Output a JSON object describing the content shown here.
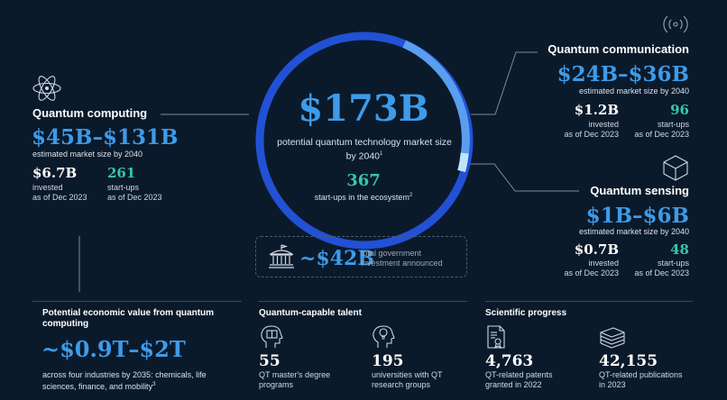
{
  "center": {
    "total": "$173B",
    "total_label": "potential quantum technology market size by 2040",
    "total_label_sup": "1",
    "startups": "367",
    "startups_label": "start-ups in the ecosystem",
    "startups_sup": "2"
  },
  "government": {
    "value": "~$42B",
    "label": "total government investment announced"
  },
  "computing": {
    "title": "Quantum computing",
    "range": "$45B–$131B",
    "range_label": "estimated market size by 2040",
    "invested": "$6.7B",
    "invested_label": "invested\nas of Dec 2023",
    "startups": "261",
    "startups_label": "start-ups\nas of Dec 2023"
  },
  "communication": {
    "title": "Quantum communication",
    "range": "$24B–$36B",
    "range_label": "estimated market size by 2040",
    "invested": "$1.2B",
    "invested_label": "invested\nas of Dec 2023",
    "startups": "96",
    "startups_label": "start-ups\nas of Dec 2023"
  },
  "sensing": {
    "title": "Quantum sensing",
    "range": "$1B–$6B",
    "range_label": "estimated market size by 2040",
    "invested": "$0.7B",
    "invested_label": "invested\nas of Dec 2023",
    "startups": "48",
    "startups_label": "start-ups\nas of Dec 2023"
  },
  "economic": {
    "title": "Potential economic value from quantum computing",
    "value": "~$0.9T–$2T",
    "label": "across four industries by 2035: chemicals, life sciences, finance, and mobility",
    "label_sup": "3"
  },
  "talent": {
    "title": "Quantum-capable talent",
    "items": [
      {
        "value": "55",
        "label": "QT master's degree\nprograms"
      },
      {
        "value": "195",
        "label": "universities with QT\nresearch groups"
      }
    ]
  },
  "science": {
    "title": "Scientific progress",
    "items": [
      {
        "value": "4,763",
        "label": "QT-related patents\ngranted in 2022"
      },
      {
        "value": "42,155",
        "label": "QT-related publications\nin 2023"
      }
    ]
  },
  "icons": [
    "atom-icon",
    "wireless-signal-icon",
    "cube-icon",
    "government-building-icon",
    "person-head-book-icon",
    "lightbulb-head-icon",
    "patent-document-icon",
    "publications-stack-icon"
  ],
  "colors": {
    "background": "#0b1a2b",
    "blue": "#3d9be9",
    "ring": "#2251d6",
    "ring_light": "#5a9ef0",
    "teal": "#36c7a8"
  }
}
